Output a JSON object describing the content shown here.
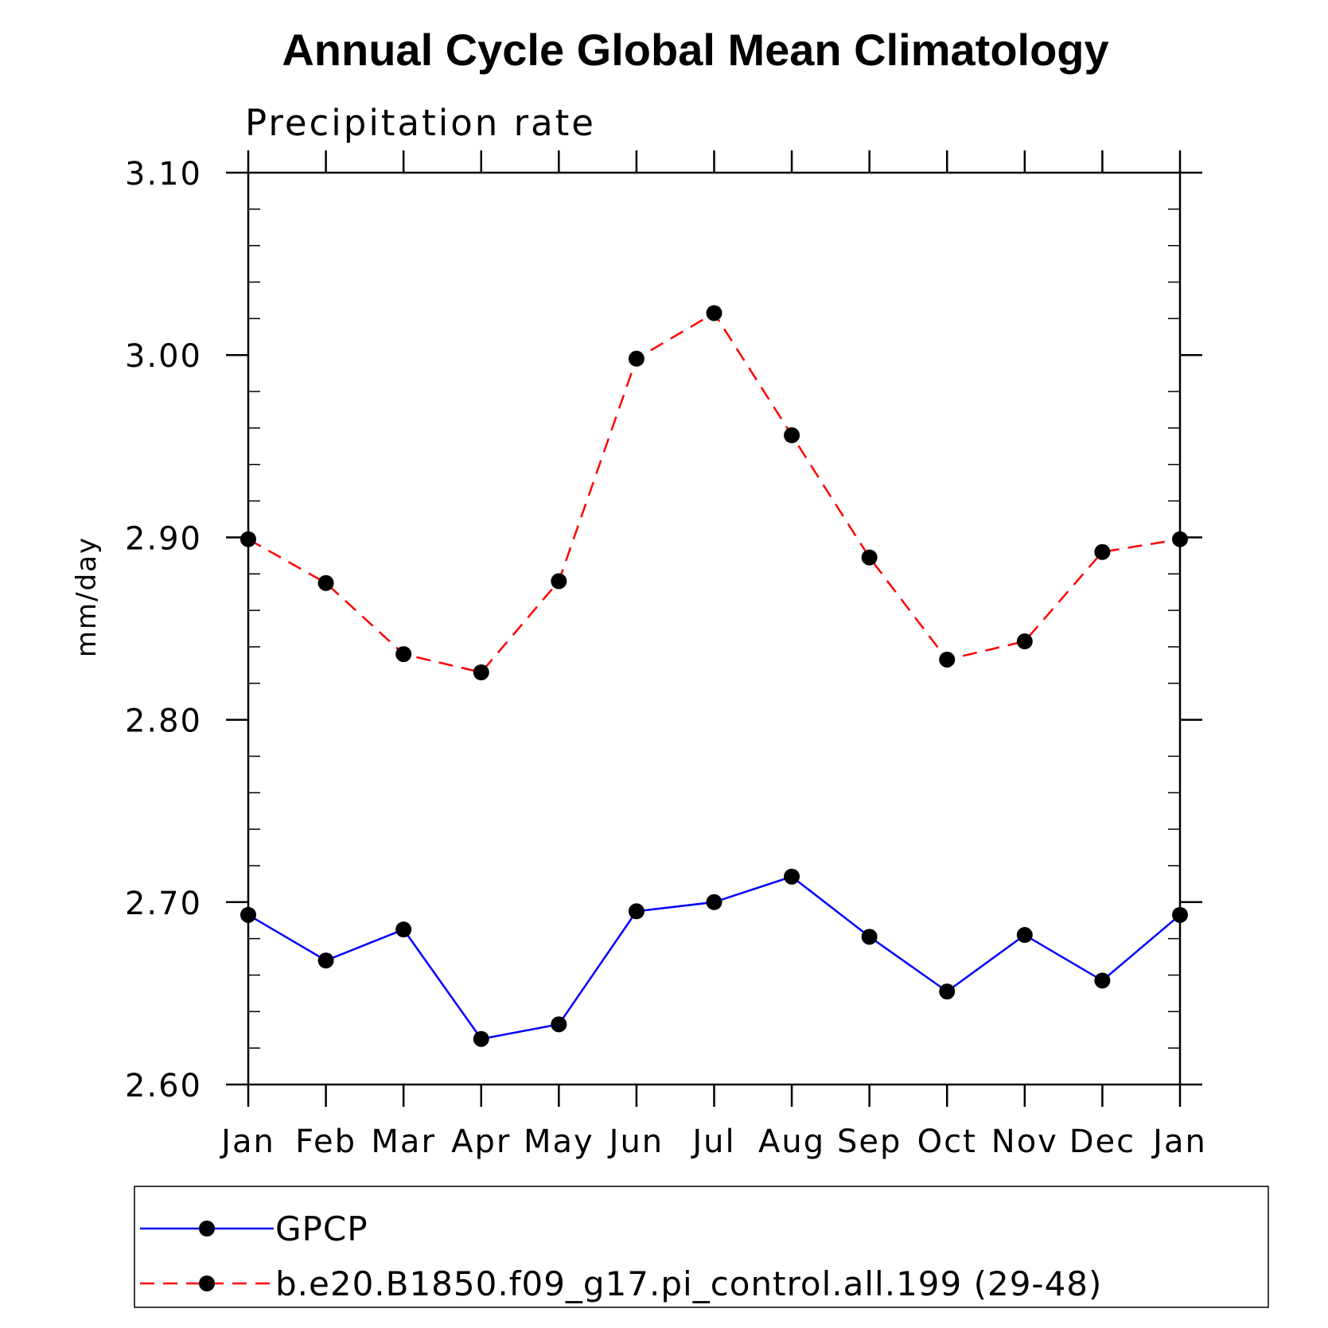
{
  "chart_data": {
    "type": "line",
    "title": "Annual Cycle Global Mean Climatology",
    "subtitle": "Precipitation rate",
    "ylabel": "mm/day",
    "xlabel": "",
    "categories": [
      "Jan",
      "Feb",
      "Mar",
      "Apr",
      "May",
      "Jun",
      "Jul",
      "Aug",
      "Sep",
      "Oct",
      "Nov",
      "Dec",
      "Jan"
    ],
    "ylim": [
      2.6,
      3.1
    ],
    "yticks": [
      2.6,
      2.7,
      2.8,
      2.9,
      3.0,
      3.1
    ],
    "ytick_labels": [
      "2.60",
      "2.70",
      "2.80",
      "2.90",
      "3.00",
      "3.10"
    ],
    "y_minor_step": 0.02,
    "grid": false,
    "legend_position": "bottom",
    "series": [
      {
        "name": "GPCP",
        "color": "#0000ff",
        "line_style": "solid",
        "marker": "filled-circle",
        "values": [
          2.693,
          2.668,
          2.685,
          2.625,
          2.633,
          2.695,
          2.7,
          2.714,
          2.681,
          2.651,
          2.682,
          2.657,
          2.693
        ]
      },
      {
        "name": "b.e20.B1850.f09_g17.pi_control.all.199 (29-48)",
        "color": "#ff0000",
        "line_style": "dashed",
        "marker": "filled-circle",
        "values": [
          2.899,
          2.875,
          2.836,
          2.826,
          2.876,
          2.998,
          3.023,
          2.956,
          2.889,
          2.833,
          2.843,
          2.892,
          2.899
        ]
      }
    ]
  }
}
